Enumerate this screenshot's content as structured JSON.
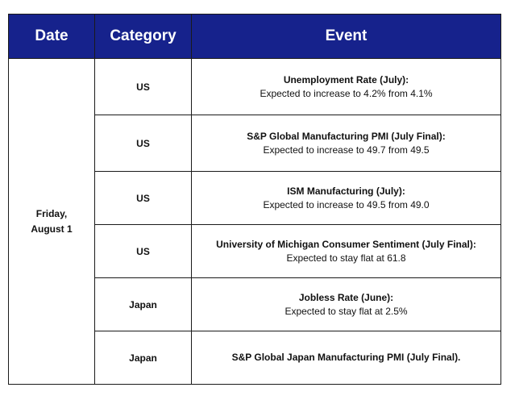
{
  "table": {
    "headers": {
      "date": "Date",
      "category": "Category",
      "event": "Event"
    },
    "date_group": {
      "line1": "Friday,",
      "line2": "August 1"
    },
    "rows": [
      {
        "category": "US",
        "event_title": "Unemployment Rate (July):",
        "event_desc": "Expected to increase to 4.2% from 4.1%"
      },
      {
        "category": "US",
        "event_title": "S&P Global Manufacturing PMI (July Final):",
        "event_desc": "Expected to increase to 49.7 from 49.5"
      },
      {
        "category": "US",
        "event_title": "ISM Manufacturing (July):",
        "event_desc": "Expected to increase to 49.5 from 49.0"
      },
      {
        "category": "US",
        "event_title": "University of Michigan Consumer Sentiment (July Final):",
        "event_desc": "Expected to stay flat at 61.8"
      },
      {
        "category": "Japan",
        "event_title": "Jobless Rate (June):",
        "event_desc": "Expected to stay flat at 2.5%"
      },
      {
        "category": "Japan",
        "event_title": "S&P Global Japan Manufacturing PMI (July Final).",
        "event_desc": ""
      }
    ]
  },
  "colors": {
    "header_background": "#16228c",
    "header_text": "#ffffff",
    "border": "#1a1a1a"
  }
}
